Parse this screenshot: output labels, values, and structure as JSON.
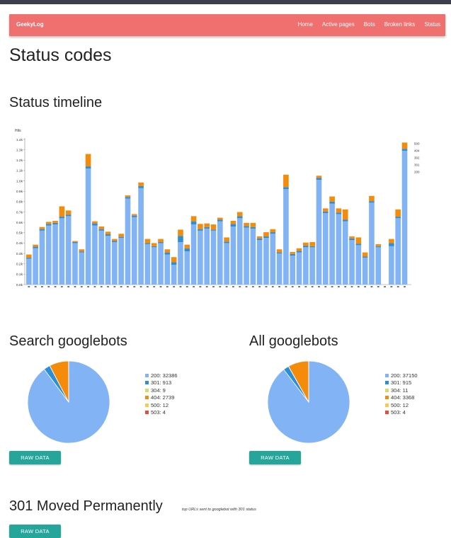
{
  "navbar": {
    "brand": "GeekyLog",
    "links": [
      "Home",
      "Active pages",
      "Bots",
      "Broken links",
      "Status"
    ]
  },
  "page_title": "Status codes",
  "timeline": {
    "title": "Status timeline"
  },
  "search_googlebots": {
    "title": "Search googlebots",
    "button": "RAW DATA"
  },
  "all_googlebots": {
    "title": "All googlebots",
    "button": "RAW DATA"
  },
  "moved_section": {
    "title": "301 Moved Permanently",
    "note": "top URLs sent to googlebot with 301 status",
    "button": "RAW DATA"
  },
  "colors": {
    "navbar": "#f07070",
    "button": "#26a69a",
    "s200": "#82b4f5",
    "s301": "#2a8fd6",
    "s304": "#d9d96a",
    "s404": "#f58b0b",
    "s500": "#f9c94f",
    "s503": "#e84c3d"
  },
  "chart_data": [
    {
      "type": "bar",
      "stacked": true,
      "ylabel": "Hits",
      "yticks": [
        "0.0k",
        "0.1k",
        "0.2k",
        "0.3k",
        "0.4k",
        "0.5k",
        "0.6k",
        "0.7k",
        "0.8k",
        "0.9k",
        "1.0k",
        "1.1k",
        "1.2k",
        "1.3k",
        "1.4k"
      ],
      "ylim": [
        0,
        1400
      ],
      "legend": [
        "500",
        "404",
        "302",
        "301",
        "200"
      ],
      "legend_position": "top-right",
      "series": [
        {
          "name": "200",
          "values": [
            250,
            350,
            520,
            570,
            580,
            640,
            660,
            400,
            310,
            1120,
            570,
            520,
            470,
            410,
            450,
            830,
            650,
            930,
            390,
            360,
            400,
            290,
            190,
            410,
            320,
            580,
            520,
            540,
            520,
            610,
            400,
            560,
            640,
            550,
            540,
            430,
            450,
            490,
            300,
            920,
            280,
            310,
            360,
            360,
            1010,
            690,
            780,
            680,
            610,
            430,
            380,
            260,
            790,
            360,
            0,
            370,
            640,
            1290
          ]
        },
        {
          "name": "301",
          "values": [
            10,
            15,
            15,
            15,
            15,
            15,
            15,
            10,
            10,
            20,
            20,
            15,
            15,
            10,
            10,
            15,
            15,
            20,
            10,
            10,
            10,
            20,
            25,
            60,
            30,
            30,
            15,
            15,
            10,
            15,
            15,
            25,
            20,
            15,
            15,
            15,
            15,
            15,
            10,
            20,
            15,
            15,
            15,
            10,
            20,
            15,
            20,
            15,
            15,
            15,
            15,
            10,
            15,
            10,
            0,
            30,
            15,
            20
          ]
        },
        {
          "name": "404",
          "values": [
            30,
            20,
            20,
            20,
            20,
            100,
            40,
            10,
            20,
            120,
            20,
            25,
            25,
            20,
            30,
            15,
            15,
            35,
            40,
            30,
            30,
            30,
            50,
            60,
            35,
            50,
            50,
            35,
            50,
            20,
            40,
            30,
            40,
            30,
            40,
            20,
            40,
            30,
            30,
            120,
            20,
            25,
            30,
            40,
            20,
            30,
            50,
            40,
            100,
            20,
            60,
            40,
            50,
            20,
            0,
            40,
            70,
            60
          ]
        },
        {
          "name": "500",
          "values": [
            0,
            0,
            0,
            0,
            0,
            0,
            0,
            0,
            0,
            0,
            0,
            0,
            0,
            0,
            0,
            0,
            0,
            0,
            0,
            0,
            0,
            0,
            0,
            0,
            0,
            0,
            0,
            0,
            0,
            0,
            0,
            0,
            0,
            0,
            0,
            0,
            0,
            0,
            0,
            0,
            0,
            0,
            0,
            0,
            0,
            0,
            0,
            0,
            0,
            0,
            0,
            0,
            0,
            0,
            0,
            0,
            0,
            0
          ]
        }
      ]
    },
    {
      "type": "pie",
      "title": "Search googlebots",
      "slices": [
        {
          "label": "200: 32386",
          "status": "200",
          "value": 32386
        },
        {
          "label": "301: 913",
          "status": "301",
          "value": 913
        },
        {
          "label": "304: 9",
          "status": "304",
          "value": 9
        },
        {
          "label": "404: 2739",
          "status": "404",
          "value": 2739
        },
        {
          "label": "500: 12",
          "status": "500",
          "value": 12
        },
        {
          "label": "503: 4",
          "status": "503",
          "value": 4
        }
      ]
    },
    {
      "type": "pie",
      "title": "All googlebots",
      "slices": [
        {
          "label": "200: 37150",
          "status": "200",
          "value": 37150
        },
        {
          "label": "301: 915",
          "status": "301",
          "value": 915
        },
        {
          "label": "304: 11",
          "status": "304",
          "value": 11
        },
        {
          "label": "404: 3368",
          "status": "404",
          "value": 3368
        },
        {
          "label": "500: 12",
          "status": "500",
          "value": 12
        },
        {
          "label": "503: 4",
          "status": "503",
          "value": 4
        }
      ]
    }
  ]
}
